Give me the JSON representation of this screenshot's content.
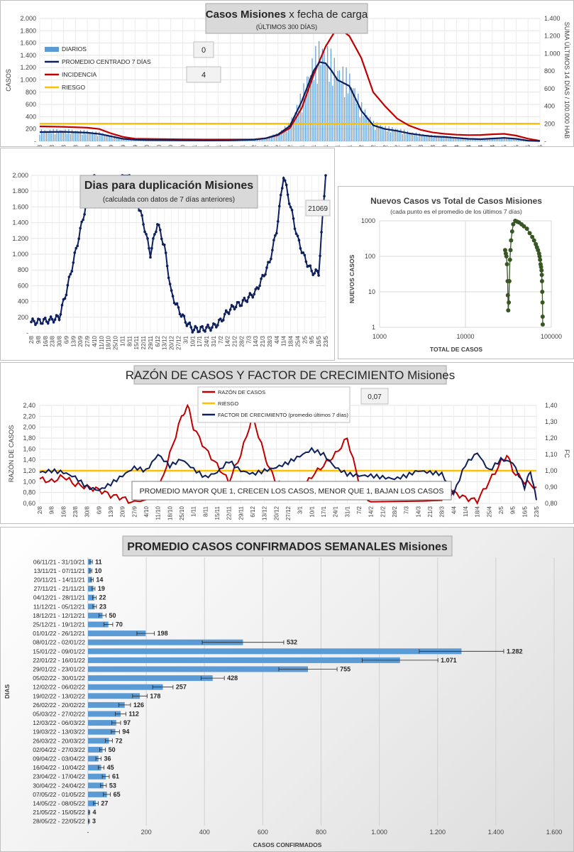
{
  "colors": {
    "navy": "#0d1f5c",
    "red": "#c00000",
    "gold": "#ffc000",
    "bar": "#5b9bd5",
    "green": "#375623"
  },
  "chart_data": [
    {
      "id": "casos",
      "type": "line",
      "title": "Casos  Misiones",
      "title_suffix": "x fecha de carga",
      "subtitle": "(ÚLTIMOS 300 DÍAS)",
      "ylabel": "CASOS",
      "ylabel_right": "SUMA ÚLTIMOS 14 DÍAS / 100.000 HAB",
      "ylim": [
        0,
        2000
      ],
      "ylim_right": [
        0,
        1400
      ],
      "yticks": [
        "-",
        "200",
        "400",
        "600",
        "800",
        "1.000",
        "1.200",
        "1.400",
        "1.600",
        "1.800",
        "2.000"
      ],
      "yticks_right": [
        "-",
        "200",
        "400",
        "600",
        "800",
        "1.000",
        "1.200",
        "1.400"
      ],
      "x_labels": [
        "2/8",
        "9/8",
        "16/8",
        "23/8",
        "30/8",
        "6/9",
        "13/9",
        "20/9",
        "27/9",
        "4/10",
        "11/10",
        "18/10",
        "25/10",
        "1/11",
        "8/11",
        "15/11",
        "22/11",
        "29/11",
        "6/12",
        "13/12",
        "20/12",
        "27/12",
        "3/1",
        "10/1",
        "17/1",
        "24/1",
        "31/1",
        "7/2",
        "14/2",
        "21/2",
        "28/2",
        "7/3",
        "14/3",
        "21/3",
        "28/3",
        "4/4",
        "11/4",
        "18/4",
        "25/4",
        "2/5",
        "9/5",
        "16/5",
        "23/5"
      ],
      "legend": [
        {
          "label": "DIARIOS",
          "value": "0"
        },
        {
          "label": "PROMEDIO CENTRADO 7 DÍAS",
          "value": ""
        },
        {
          "label": "INCIDENCIA",
          "value": "4"
        },
        {
          "label": "RIESGO",
          "value": ""
        }
      ],
      "riesgo": 200,
      "series_promedio": [
        [
          0,
          150
        ],
        [
          2,
          155
        ],
        [
          4,
          140
        ],
        [
          5,
          120
        ],
        [
          6,
          80
        ],
        [
          7,
          40
        ],
        [
          8,
          25
        ],
        [
          9,
          20
        ],
        [
          10,
          18
        ],
        [
          12,
          15
        ],
        [
          14,
          14
        ],
        [
          16,
          15
        ],
        [
          18,
          25
        ],
        [
          19,
          50
        ],
        [
          20,
          110
        ],
        [
          21,
          250
        ],
        [
          22,
          650
        ],
        [
          23,
          1150
        ],
        [
          23.5,
          1290
        ],
        [
          24,
          1270
        ],
        [
          24.5,
          1150
        ],
        [
          25,
          1000
        ],
        [
          26,
          900
        ],
        [
          27,
          500
        ],
        [
          28,
          260
        ],
        [
          29,
          200
        ],
        [
          30,
          170
        ],
        [
          31,
          130
        ],
        [
          32,
          100
        ],
        [
          33,
          80
        ],
        [
          34,
          70
        ],
        [
          35,
          55
        ],
        [
          36,
          40
        ],
        [
          37,
          35
        ],
        [
          38,
          45
        ],
        [
          39,
          55
        ],
        [
          40,
          40
        ],
        [
          41,
          10
        ],
        [
          42,
          5
        ]
      ],
      "series_incidencia": [
        [
          0,
          170
        ],
        [
          2,
          165
        ],
        [
          4,
          155
        ],
        [
          5,
          140
        ],
        [
          6,
          90
        ],
        [
          7,
          50
        ],
        [
          8,
          30
        ],
        [
          10,
          25
        ],
        [
          14,
          20
        ],
        [
          18,
          22
        ],
        [
          19,
          35
        ],
        [
          20,
          70
        ],
        [
          21,
          150
        ],
        [
          22,
          380
        ],
        [
          23,
          760
        ],
        [
          24,
          1080
        ],
        [
          25,
          1300
        ],
        [
          26,
          1200
        ],
        [
          27,
          950
        ],
        [
          28,
          560
        ],
        [
          29,
          400
        ],
        [
          30,
          260
        ],
        [
          31,
          180
        ],
        [
          32,
          130
        ],
        [
          33,
          100
        ],
        [
          34,
          85
        ],
        [
          35,
          75
        ],
        [
          36,
          70
        ],
        [
          37,
          72
        ],
        [
          38,
          80
        ],
        [
          39,
          85
        ],
        [
          40,
          65
        ],
        [
          41,
          30
        ],
        [
          42,
          6
        ]
      ]
    },
    {
      "id": "duplicacion",
      "type": "line",
      "title": "Dias para duplicación Misiones",
      "subtitle": "(calculada con datos de 7 días anteriores)",
      "annotation": "21069",
      "ylim": [
        0,
        2000
      ],
      "yticks": [
        "-",
        "200",
        "400",
        "600",
        "800",
        "1.000",
        "1.200",
        "1.400",
        "1.600",
        "1.800",
        "2.000"
      ],
      "x_labels": [
        "2/8",
        "9/8",
        "16/8",
        "23/8",
        "30/8",
        "6/9",
        "13/9",
        "20/9",
        "27/9",
        "4/10",
        "11/10",
        "18/10",
        "25/10",
        "1/11",
        "8/11",
        "15/11",
        "22/11",
        "29/11",
        "6/12",
        "13/12",
        "20/12",
        "27/12",
        "3/1",
        "10/1",
        "17/1",
        "24/1",
        "31/1",
        "7/2",
        "14/2",
        "21/2",
        "28/2",
        "7/3",
        "14/3",
        "21/3",
        "28/3",
        "4/4",
        "11/4",
        "18/4",
        "25/4",
        "2/5",
        "9/5",
        "16/5",
        "23/5"
      ],
      "series": [
        [
          0,
          140
        ],
        [
          1,
          145
        ],
        [
          2,
          155
        ],
        [
          3,
          170
        ],
        [
          4,
          200
        ],
        [
          5,
          520
        ],
        [
          6,
          900
        ],
        [
          7,
          1300
        ],
        [
          8,
          1700
        ],
        [
          9,
          2000
        ],
        [
          14,
          2000
        ],
        [
          15,
          1700
        ],
        [
          16,
          1400
        ],
        [
          17,
          1000
        ],
        [
          18,
          1400
        ],
        [
          19,
          1100
        ],
        [
          20,
          500
        ],
        [
          21,
          300
        ],
        [
          22,
          150
        ],
        [
          23,
          50
        ],
        [
          24,
          45
        ],
        [
          25,
          60
        ],
        [
          26,
          80
        ],
        [
          27,
          150
        ],
        [
          28,
          270
        ],
        [
          29,
          340
        ],
        [
          30,
          380
        ],
        [
          31,
          450
        ],
        [
          32,
          520
        ],
        [
          33,
          700
        ],
        [
          34,
          900
        ],
        [
          35,
          1300
        ],
        [
          36,
          2000
        ],
        [
          37,
          1600
        ],
        [
          38,
          1200
        ],
        [
          39,
          950
        ],
        [
          40,
          780
        ],
        [
          41,
          760
        ],
        [
          42,
          2000
        ]
      ]
    },
    {
      "id": "nuevos",
      "type": "scatter",
      "title": "Nuevos Casos vs Total de Casos Misiones",
      "subtitle": "(cada punto es el promedio de los últimos 7 días)",
      "xlabel": "TOTAL DE CASOS",
      "ylabel": "NUEVOS  CASOS",
      "xscale": "log",
      "yscale": "log",
      "xlim": [
        1000,
        100000
      ],
      "ylim": [
        1,
        1000
      ],
      "xticks": [
        "1000",
        "10000",
        "100000"
      ],
      "yticks": [
        "1",
        "10",
        "100",
        "1000"
      ],
      "series": [
        [
          29000,
          150
        ],
        [
          29500,
          120
        ],
        [
          30000,
          100
        ],
        [
          30500,
          60
        ],
        [
          31000,
          20
        ],
        [
          31200,
          8
        ],
        [
          31500,
          3
        ],
        [
          32000,
          5
        ],
        [
          32500,
          20
        ],
        [
          33000,
          80
        ],
        [
          33500,
          150
        ],
        [
          34000,
          280
        ],
        [
          35000,
          500
        ],
        [
          36000,
          800
        ],
        [
          38000,
          1000
        ],
        [
          40000,
          950
        ],
        [
          42000,
          900
        ],
        [
          45000,
          800
        ],
        [
          48000,
          700
        ],
        [
          52000,
          600
        ],
        [
          56000,
          450
        ],
        [
          60000,
          350
        ],
        [
          63000,
          280
        ],
        [
          66000,
          220
        ],
        [
          68000,
          180
        ],
        [
          70000,
          150
        ],
        [
          72000,
          120
        ],
        [
          73000,
          100
        ],
        [
          74000,
          80
        ],
        [
          75000,
          60
        ],
        [
          76000,
          50
        ],
        [
          77000,
          40
        ],
        [
          77500,
          30
        ],
        [
          78000,
          20
        ],
        [
          78500,
          10
        ],
        [
          79000,
          5
        ],
        [
          79300,
          2
        ],
        [
          79500,
          1.2
        ]
      ]
    },
    {
      "id": "razon",
      "type": "line",
      "title": "RAZÓN DE CASOS Y FACTOR DE CRECIMIENTO Misiones",
      "ylabel": "RAZÓN DE CASOS",
      "ylabel_right": "FC",
      "annotation": "0,07",
      "note": "PROMEDIO MAYOR QUE 1, CRECEN LOS CASOS, MENOR QUE 1, BAJAN LOS CASOS",
      "ylim": [
        0.6,
        2.4
      ],
      "ylim_right": [
        0.8,
        1.4
      ],
      "yticks": [
        "0,60",
        "0,80",
        "1,00",
        "1,20",
        "1,40",
        "1,60",
        "1,80",
        "2,00",
        "2,20",
        "2,40"
      ],
      "yticks_right": [
        "0,80",
        "0,90",
        "1,00",
        "1,10",
        "1,20",
        "1,30",
        "1,40"
      ],
      "x_labels": [
        "2/8",
        "9/8",
        "16/8",
        "23/8",
        "30/8",
        "6/9",
        "13/9",
        "20/9",
        "27/9",
        "4/10",
        "11/10",
        "18/10",
        "25/10",
        "1/11",
        "8/11",
        "15/11",
        "22/11",
        "29/11",
        "6/12",
        "13/12",
        "20/12",
        "27/12",
        "3/1",
        "10/1",
        "17/1",
        "24/1",
        "31/1",
        "7/2",
        "14/2",
        "21/2",
        "28/2",
        "7/3",
        "14/3",
        "21/3",
        "28/3",
        "4/4",
        "11/4",
        "18/4",
        "25/4",
        "2/5",
        "9/5",
        "16/5",
        "23/5"
      ],
      "legend": [
        "RAZÓN DE CASOS",
        "RIESGO",
        "FACTOR DE CRECIMIENTO (promedio últimos 7 días)"
      ],
      "riesgo": 1.2,
      "series_razon": [
        [
          0,
          1.05
        ],
        [
          1,
          1.0
        ],
        [
          2,
          1.1
        ],
        [
          3,
          0.95
        ],
        [
          4,
          0.9
        ],
        [
          5,
          0.85
        ],
        [
          6,
          0.75
        ],
        [
          7,
          0.7
        ],
        [
          8,
          0.6
        ],
        [
          10,
          0.8
        ],
        [
          11,
          1.5
        ],
        [
          12,
          2.2
        ],
        [
          12.5,
          2.4
        ],
        [
          13,
          2.0
        ],
        [
          14,
          1.6
        ],
        [
          15,
          1.3
        ],
        [
          16,
          1.0
        ],
        [
          17,
          1.5
        ],
        [
          18,
          2.2
        ],
        [
          19,
          1.5
        ],
        [
          19.5,
          1.2
        ],
        [
          20,
          1.0
        ],
        [
          21,
          0.9
        ],
        [
          22,
          0.8
        ],
        [
          23,
          1.1
        ],
        [
          24,
          1.3
        ],
        [
          25,
          1.5
        ],
        [
          26,
          1.8
        ],
        [
          27,
          1.0
        ],
        [
          28,
          0.6
        ],
        [
          34,
          0.7
        ],
        [
          35,
          0.8
        ],
        [
          36,
          0.7
        ],
        [
          37,
          0.65
        ],
        [
          38,
          1.0
        ],
        [
          39,
          1.35
        ],
        [
          39.5,
          1.5
        ],
        [
          40,
          1.2
        ],
        [
          41,
          1.0
        ],
        [
          42,
          0.9
        ]
      ],
      "series_fc": [
        [
          0,
          0.99
        ],
        [
          1,
          1.0
        ],
        [
          2,
          0.99
        ],
        [
          3,
          0.96
        ],
        [
          4,
          0.9
        ],
        [
          5,
          0.88
        ],
        [
          6,
          0.92
        ],
        [
          7,
          0.97
        ],
        [
          8,
          1.02
        ],
        [
          9,
          1.0
        ],
        [
          10,
          1.1
        ],
        [
          11,
          1.03
        ],
        [
          12,
          1.07
        ],
        [
          13,
          1.01
        ],
        [
          14,
          0.96
        ],
        [
          15,
          0.99
        ],
        [
          16,
          1.06
        ],
        [
          17,
          1.0
        ],
        [
          18,
          0.98
        ],
        [
          19,
          1.0
        ],
        [
          20,
          1.02
        ],
        [
          21,
          1.05
        ],
        [
          22,
          1.09
        ],
        [
          23,
          1.13
        ],
        [
          24,
          1.1
        ],
        [
          25,
          1.02
        ],
        [
          26,
          0.98
        ],
        [
          27,
          0.97
        ],
        [
          28,
          0.97
        ],
        [
          29,
          0.96
        ],
        [
          30,
          0.95
        ],
        [
          31,
          0.97
        ],
        [
          32,
          1.0
        ],
        [
          33,
          0.99
        ],
        [
          34,
          0.98
        ],
        [
          35,
          0.86
        ],
        [
          36,
          1.04
        ],
        [
          37,
          1.11
        ],
        [
          38,
          1.0
        ],
        [
          39,
          1.07
        ],
        [
          40,
          1.05
        ],
        [
          41,
          0.9
        ],
        [
          41.5,
          1.0
        ],
        [
          42,
          0.82
        ]
      ]
    },
    {
      "id": "semanal",
      "type": "bar",
      "orientation": "horizontal",
      "title": "PROMEDIO CASOS CONFIRMADOS SEMANALES Misiones",
      "xlabel": "CASOS CONFIRMADOS",
      "ylabel": "DIAS",
      "xlim": [
        0,
        1600
      ],
      "xticks": [
        "-",
        "200",
        "400",
        "600",
        "800",
        "1.000",
        "1.200",
        "1.400",
        "1.600"
      ],
      "categories": [
        "06/11/21 - 31/10/21",
        "13/11/21 - 07/11/21",
        "20/11/21 - 14/11/21",
        "27/11/21 - 21/11/21",
        "04/12/21 - 28/11/21",
        "11/12/21 - 05/12/21",
        "18/12/21 - 12/12/21",
        "25/12/21 - 19/12/21",
        "01/01/22 - 26/12/21",
        "08/01/22 - 02/01/22",
        "15/01/22 - 09/01/22",
        "22/01/22 - 16/01/22",
        "29/01/22 - 23/01/22",
        "05/02/22 - 30/01/22",
        "12/02/22 - 06/02/22",
        "19/02/22 - 13/02/22",
        "26/02/22 - 20/02/22",
        "05/03/22 - 27/02/22",
        "12/03/22 - 06/03/22",
        "19/03/22 - 13/03/22",
        "26/03/22 - 20/03/22",
        "02/04/22 - 27/03/22",
        "09/04/22 - 03/04/22",
        "16/04/22 - 10/04/22",
        "23/04/22 - 17/04/22",
        "30/04/22 - 24/04/22",
        "07/05/22 - 01/05/22",
        "14/05/22 - 08/05/22",
        "21/05/22 - 15/05/22",
        "28/05/22 - 22/05/22"
      ],
      "values": [
        11,
        10,
        14,
        19,
        22,
        23,
        50,
        70,
        198,
        532,
        1282,
        1071,
        755,
        428,
        257,
        178,
        126,
        112,
        97,
        94,
        72,
        50,
        36,
        45,
        61,
        53,
        65,
        27,
        4,
        3
      ],
      "value_labels": [
        "11",
        "10",
        "14",
        "19",
        "22",
        "23",
        "50",
        "70",
        "198",
        "532",
        "1.282",
        "1.071",
        "755",
        "428",
        "257",
        "178",
        "126",
        "112",
        "97",
        "94",
        "72",
        "50",
        "36",
        "45",
        "61",
        "53",
        "65",
        "27",
        "4",
        "3"
      ],
      "error": [
        4,
        3,
        4,
        5,
        6,
        6,
        12,
        15,
        30,
        140,
        145,
        130,
        100,
        40,
        35,
        25,
        20,
        18,
        15,
        14,
        12,
        10,
        9,
        10,
        12,
        10,
        12,
        8,
        2,
        2
      ]
    }
  ]
}
